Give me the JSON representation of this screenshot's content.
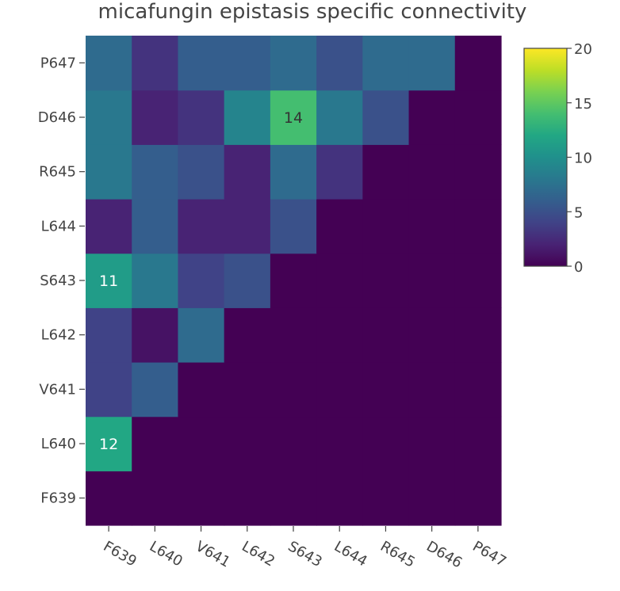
{
  "chart_data": {
    "type": "heatmap",
    "title": "micafungin epistasis specific connectivity",
    "x_categories": [
      "F639",
      "L640",
      "V641",
      "L642",
      "S643",
      "L644",
      "R645",
      "D646",
      "P647"
    ],
    "y_categories": [
      "F639",
      "L640",
      "V641",
      "L642",
      "S643",
      "L644",
      "R645",
      "D646",
      "P647"
    ],
    "z": [
      [
        0,
        0,
        0,
        0,
        0,
        0,
        0,
        0,
        0
      ],
      [
        12,
        0,
        0,
        0,
        0,
        0,
        0,
        0,
        0
      ],
      [
        4,
        6,
        0,
        0,
        0,
        0,
        0,
        0,
        0
      ],
      [
        4,
        1,
        7,
        0,
        0,
        0,
        0,
        0,
        0
      ],
      [
        11,
        8,
        4,
        5,
        0,
        0,
        0,
        0,
        0
      ],
      [
        2,
        6,
        2,
        2,
        5,
        0,
        0,
        0,
        0
      ],
      [
        8,
        6,
        5,
        2,
        7,
        3,
        0,
        0,
        0
      ],
      [
        8,
        2,
        3,
        9,
        14,
        8,
        5,
        0,
        0
      ],
      [
        7,
        3,
        6,
        6,
        7,
        5,
        7,
        7,
        0
      ]
    ],
    "annotations": [
      {
        "x": "F639",
        "y": "L640",
        "text": "12"
      },
      {
        "x": "F639",
        "y": "S643",
        "text": "11"
      },
      {
        "x": "S643",
        "y": "D646",
        "text": "14"
      }
    ],
    "colorscale": "viridis",
    "zlim": [
      0,
      20
    ],
    "colorbar_ticks": [
      "0",
      "5",
      "10",
      "15",
      "20"
    ],
    "colorbar_tick_values": [
      0,
      5,
      10,
      15,
      20
    ]
  }
}
